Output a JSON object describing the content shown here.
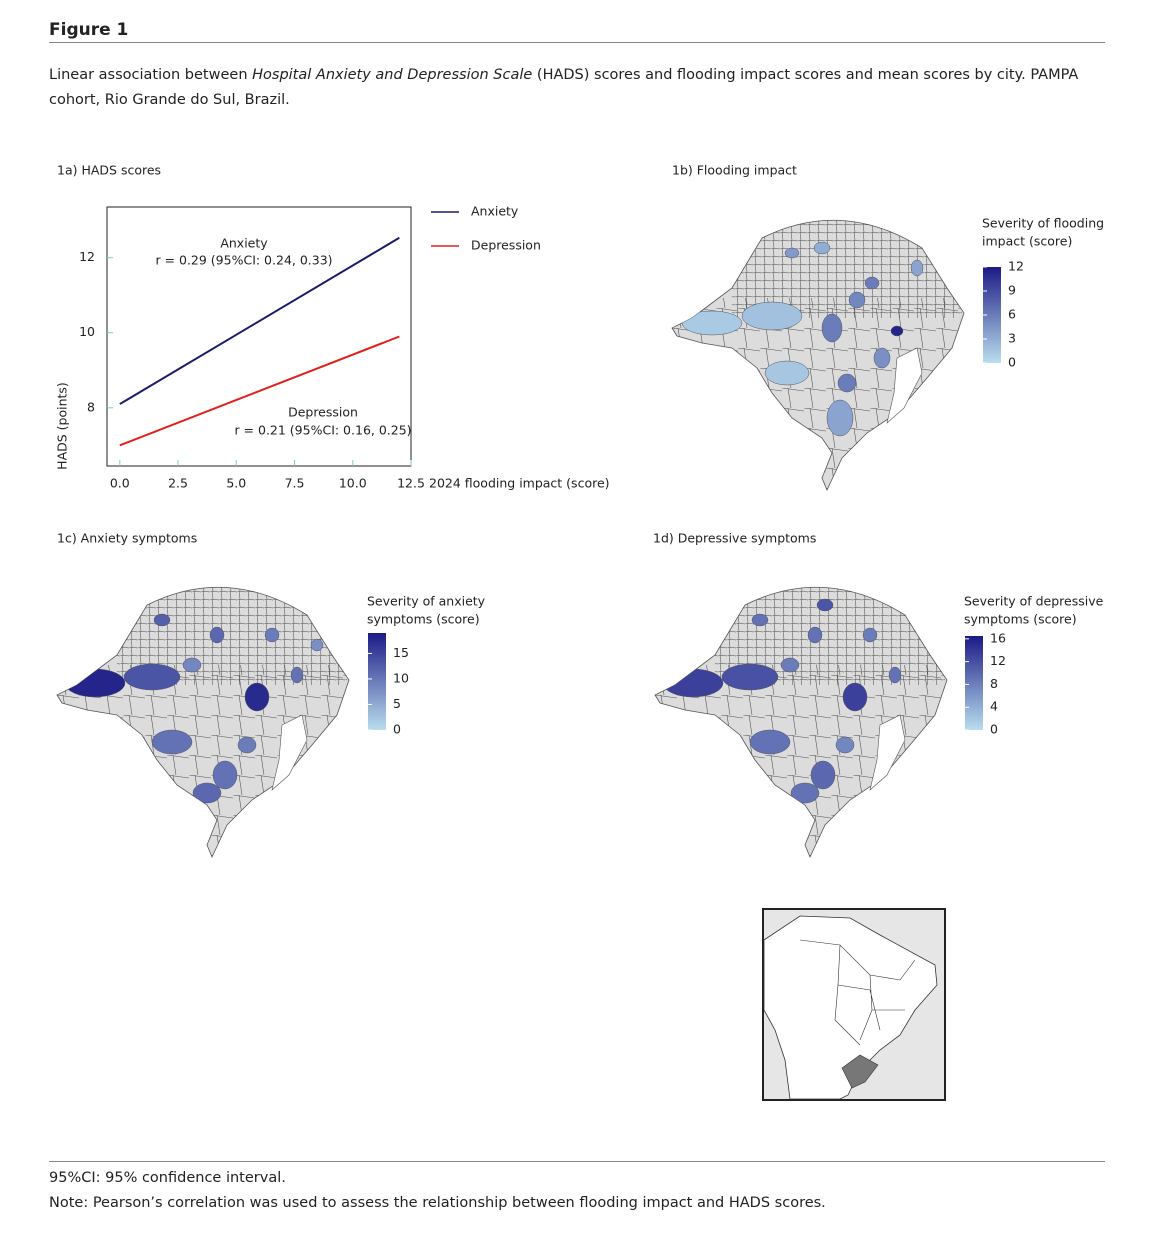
{
  "header": {
    "title": "Figure 1"
  },
  "caption": {
    "parts": [
      "Linear association between ",
      "Hospital Anxiety and Depression Scale",
      " (HADS) scores and flooding impact scores and mean scores by city. PAMPA cohort, Rio Grande do Sul, Brazil."
    ]
  },
  "chart_data": {
    "type": "line",
    "title": "1a) HADS scores",
    "x": [
      0,
      12
    ],
    "series": [
      {
        "name": "Anxiety",
        "color": "#1b1b6b",
        "values": [
          8.1,
          12.53
        ]
      },
      {
        "name": "Depression",
        "color": "#e0201b",
        "values": [
          7.0,
          9.9
        ]
      }
    ],
    "annotations": [
      "Anxiety",
      "r = 0.29 (95%CI: 0.24, 0.33)",
      "Depression",
      "r = 0.21 (95%CI: 0.16, 0.25)"
    ],
    "xlabel": "2024 flooding impact (score)",
    "ylabel": "HADS (points)",
    "xlim": [
      -0.55,
      12.5
    ],
    "ylim": [
      6.45,
      13.35
    ],
    "xticks": [
      {
        "value": 0,
        "label": "0.0"
      },
      2.5,
      {
        "value": 5,
        "label": "5.0"
      },
      7.5,
      {
        "value": 10,
        "label": "10.0"
      },
      12.5
    ],
    "yticks": [
      8,
      10,
      12
    ]
  },
  "maps": [
    {
      "title": "1b) Flooding impact",
      "legend_title": [
        "Severity of flooding",
        "impact (score)"
      ],
      "colorbar_lim": [
        0,
        12
      ],
      "colorbar_ticks": [
        0,
        3,
        6,
        9,
        12
      ],
      "low_color": "#b9deee",
      "high_color": "#1c1a86"
    },
    {
      "title": "1c) Anxiety symptoms",
      "legend_title": [
        "Severity of anxiety",
        "symptoms (score)"
      ],
      "colorbar_lim": [
        0,
        19
      ],
      "colorbar_ticks": [
        0,
        5,
        10,
        15
      ],
      "low_color": "#b9deee",
      "high_color": "#1c1a86"
    },
    {
      "title": "1d) Depressive symptoms",
      "legend_title": [
        "Severity of depressive",
        "symptoms (score)"
      ],
      "colorbar_lim": [
        0,
        16.5
      ],
      "colorbar_ticks": [
        0,
        4,
        8,
        12,
        16
      ],
      "low_color": "#b9deee",
      "high_color": "#1c1a86"
    }
  ],
  "footer": {
    "notes": [
      "95%CI: 95% confidence interval.",
      "Note: Pearson’s correlation was used to assess the relationship between flooding impact and HADS scores."
    ]
  }
}
